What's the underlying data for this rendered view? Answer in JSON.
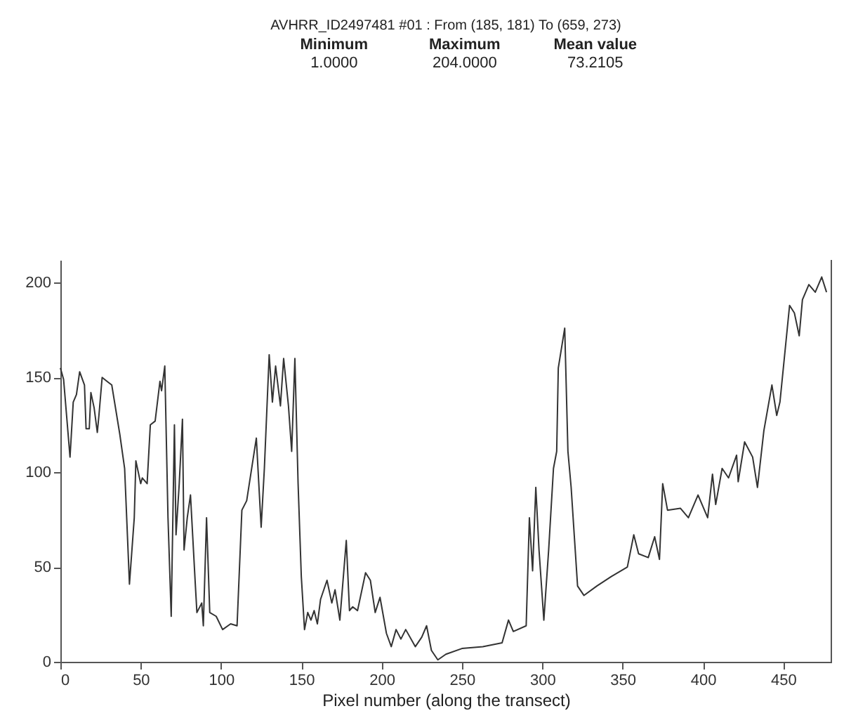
{
  "chart_data": {
    "type": "line",
    "title": "AVHRR_ID2497481 #01 : From (185, 181) To (659, 273)",
    "annotations": [
      "Minimum",
      "1.0000",
      "Maximum",
      "204.0000",
      "Mean value",
      "73.2105"
    ],
    "xlabel": "Pixel number (along the transect)",
    "x": [
      0,
      2,
      6,
      8,
      10,
      12,
      15,
      16,
      18,
      19,
      21,
      23,
      24,
      26,
      29,
      32,
      37,
      40,
      43,
      46,
      47,
      50,
      51,
      54,
      56,
      59,
      62,
      63,
      65,
      67,
      69,
      71,
      72,
      74,
      76,
      77,
      79,
      81,
      84,
      85,
      88,
      89,
      91,
      93,
      97,
      101,
      106,
      110,
      113,
      116,
      122,
      125,
      127,
      130,
      132,
      134,
      137,
      139,
      142,
      144,
      146,
      148,
      150,
      152,
      154,
      156,
      158,
      160,
      162,
      166,
      169,
      171,
      174,
      178,
      180,
      182,
      185,
      190,
      193,
      196,
      199,
      203,
      206,
      209,
      212,
      215,
      221,
      225,
      228,
      231,
      235,
      240,
      250,
      263,
      275,
      279,
      282,
      290,
      292,
      294,
      296,
      298,
      301,
      304,
      307,
      309,
      310,
      314,
      316,
      318,
      322,
      326,
      334,
      343,
      353,
      357,
      360,
      366,
      370,
      373,
      375,
      378,
      386,
      391,
      397,
      403,
      406,
      408,
      412,
      416,
      421,
      422,
      426,
      431,
      434,
      438,
      443,
      446,
      448,
      454,
      457,
      460,
      462,
      466,
      470,
      474,
      477
    ],
    "series": [
      {
        "color": "#333333",
        "values": [
          155,
          149,
          108,
          137,
          141,
          153,
          146,
          123,
          123,
          142,
          134,
          121,
          130,
          150,
          148,
          146,
          120,
          102,
          41,
          76,
          106,
          94,
          97,
          94,
          125,
          127,
          148,
          143,
          156,
          76,
          24,
          125,
          67,
          94,
          128,
          59,
          76,
          88,
          41,
          26,
          31,
          19,
          76,
          26,
          24,
          17,
          20,
          19,
          80,
          85,
          118,
          71,
          102,
          162,
          137,
          156,
          135,
          160,
          135,
          111,
          160,
          94,
          45,
          17,
          26,
          22,
          27,
          20,
          33,
          43,
          31,
          38,
          22,
          64,
          27,
          29,
          27,
          47,
          43,
          26,
          34,
          15,
          8,
          17,
          12,
          17,
          8,
          13,
          19,
          6,
          1,
          4,
          7,
          8,
          10,
          22,
          16,
          19,
          76,
          48,
          92,
          59,
          22,
          59,
          102,
          111,
          155,
          176,
          111,
          92,
          40,
          35,
          40,
          45,
          50,
          67,
          57,
          55,
          66,
          54,
          94,
          80,
          81,
          76,
          88,
          76,
          99,
          83,
          102,
          97,
          109,
          95,
          116,
          108,
          92,
          122,
          146,
          130,
          137,
          188,
          184,
          172,
          191,
          199,
          195,
          203,
          195
        ]
      }
    ],
    "xlim": [
      0,
      480
    ],
    "xticks": [
      0,
      50,
      100,
      150,
      200,
      250,
      300,
      350,
      400,
      450
    ],
    "ylim": [
      0,
      212
    ],
    "yticks": [
      0,
      50,
      100,
      150,
      200
    ],
    "grid": false,
    "marker": "none",
    "line_style": "solid"
  }
}
